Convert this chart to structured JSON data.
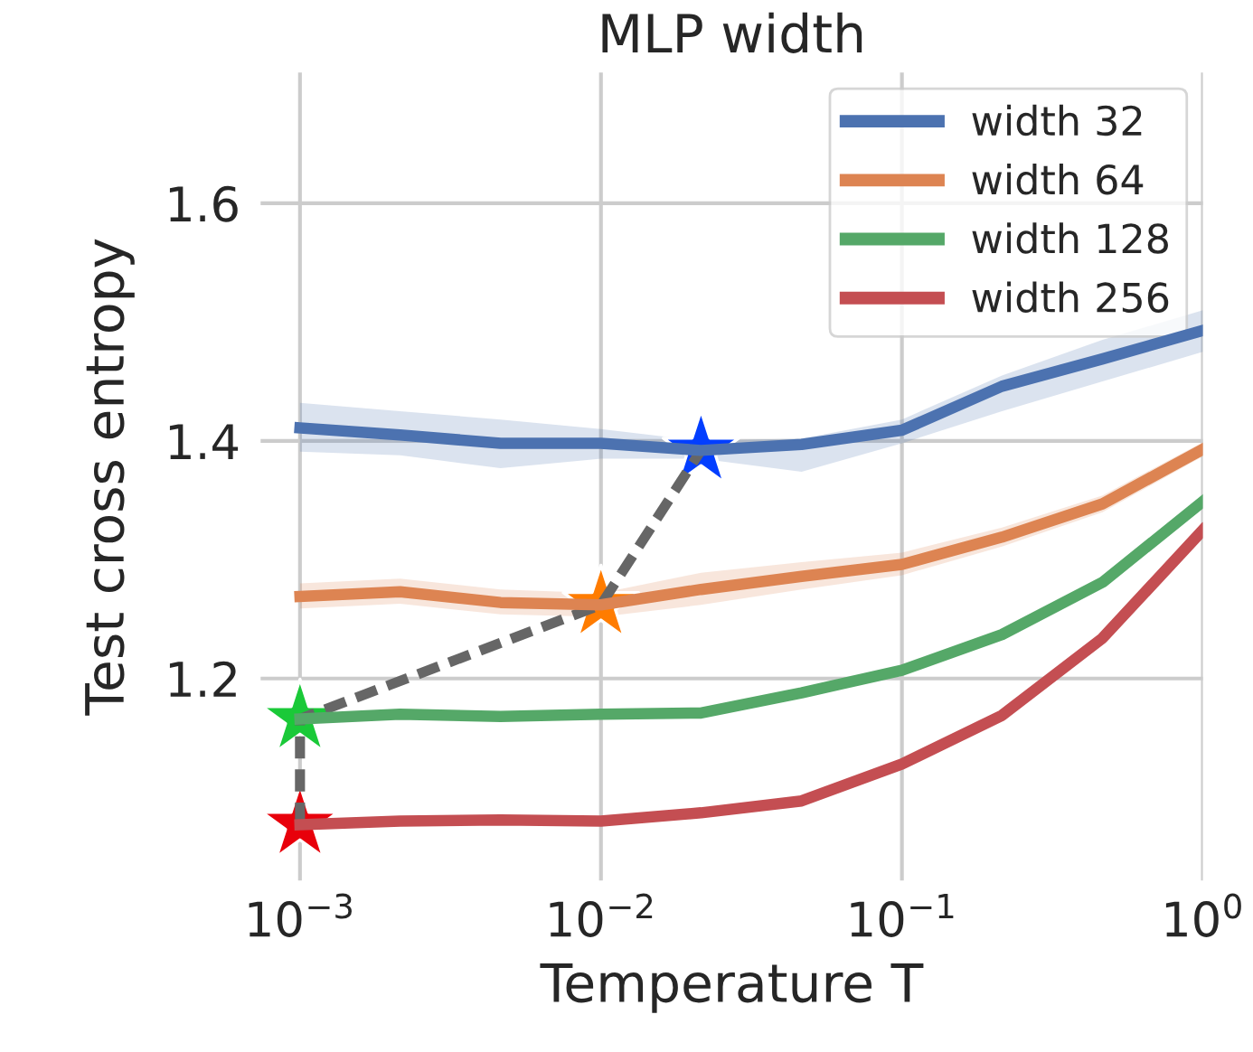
{
  "chart_data": {
    "type": "line",
    "title": "MLP width",
    "xlabel": "Temperature T",
    "ylabel": "Test cross entropy",
    "log": "x",
    "xlim": [
      0.00074,
      1
    ],
    "ylim": [
      1.03,
      1.71
    ],
    "xticks": [
      {
        "value": 0.001,
        "label": "10$^{−3}$"
      },
      {
        "value": 0.01,
        "label": "10$^{−2}$"
      },
      {
        "value": 0.1,
        "label": "10$^{−1}$"
      },
      {
        "value": 1,
        "label": "10$^{0}$"
      }
    ],
    "yticks": [
      1.2,
      1.4,
      1.6
    ],
    "grid": true,
    "legend": "top right",
    "marker": "none",
    "line_style": "solid",
    "x": [
      0.001,
      0.00215,
      0.00464,
      0.01,
      0.0215,
      0.0464,
      0.1,
      0.215,
      0.464,
      1
    ],
    "series": [
      {
        "name": "width 32",
        "color": "#4c72b0",
        "values": [
          1.411,
          1.405,
          1.398,
          1.398,
          1.392,
          1.397,
          1.409,
          1.446,
          1.469,
          1.493
        ],
        "lower": [
          1.391,
          1.388,
          1.377,
          1.385,
          1.385,
          1.374,
          1.398,
          1.425,
          1.45,
          1.475
        ],
        "upper": [
          1.432,
          1.425,
          1.418,
          1.41,
          1.4,
          1.402,
          1.418,
          1.455,
          1.485,
          1.51
        ]
      },
      {
        "name": "width 64",
        "color": "#dd8452",
        "values": [
          1.269,
          1.273,
          1.264,
          1.262,
          1.275,
          1.286,
          1.296,
          1.319,
          1.347,
          1.393
        ],
        "lower": [
          1.259,
          1.263,
          1.254,
          1.252,
          1.262,
          1.275,
          1.287,
          1.311,
          1.34,
          1.387
        ],
        "upper": [
          1.28,
          1.284,
          1.275,
          1.272,
          1.289,
          1.298,
          1.306,
          1.327,
          1.354,
          1.399
        ]
      },
      {
        "name": "width 128",
        "color": "#55a868",
        "values": [
          1.166,
          1.17,
          1.168,
          1.17,
          1.171,
          1.188,
          1.207,
          1.237,
          1.281,
          1.349
        ]
      },
      {
        "name": "width 256",
        "color": "#c44e52",
        "values": [
          1.077,
          1.08,
          1.081,
          1.08,
          1.087,
          1.097,
          1.128,
          1.169,
          1.234,
          1.325
        ]
      },
      {
        "type": "line",
        "line_style": "dashed",
        "color": "#666666",
        "x": [
          0.001,
          0.001,
          0.01,
          0.0215
        ],
        "values": [
          1.077,
          1.166,
          1.262,
          1.392
        ]
      },
      {
        "type": "scatter",
        "marker": "star",
        "x": [
          0.0215,
          0.01,
          0.001,
          0.001
        ],
        "values": [
          1.392,
          1.262,
          1.166,
          1.077
        ],
        "colors": [
          "#023eff",
          "#ff7c00",
          "#1ac938",
          "#e8000b"
        ]
      }
    ]
  }
}
